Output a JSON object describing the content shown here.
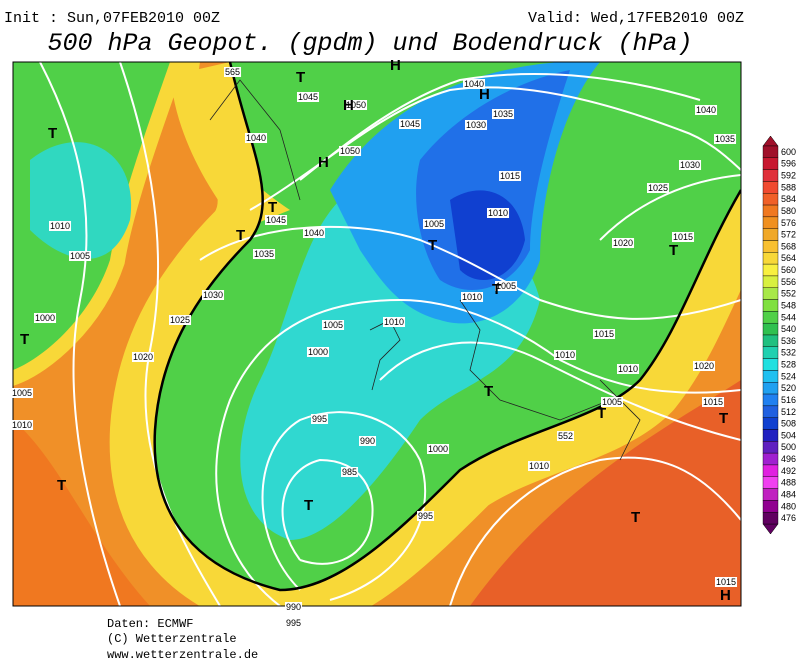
{
  "header": {
    "init": "Init : Sun,07FEB2010 00Z",
    "valid": "Valid: Wed,17FEB2010 00Z",
    "title": "500 hPa Geopot. (gpdm) und Bodendruck (hPa)"
  },
  "colorbar": {
    "levels": [
      600,
      596,
      592,
      588,
      584,
      580,
      576,
      572,
      568,
      564,
      560,
      556,
      552,
      548,
      544,
      540,
      536,
      532,
      528,
      524,
      520,
      516,
      512,
      508,
      504,
      500,
      496,
      492,
      488,
      484,
      480,
      476
    ],
    "colors": [
      "#a0102a",
      "#c81830",
      "#e0303a",
      "#f04a30",
      "#f06028",
      "#f07820",
      "#f09020",
      "#f0a828",
      "#f8c030",
      "#f8d838",
      "#f8f040",
      "#d8f040",
      "#a8e848",
      "#80e040",
      "#50d048",
      "#30c050",
      "#20c080",
      "#20d0b0",
      "#20e0e0",
      "#20c0f0",
      "#20a0f0",
      "#2080f0",
      "#2060e0",
      "#1040d0",
      "#2020c0",
      "#6020c0",
      "#a020d0",
      "#e020e0",
      "#f040f0",
      "#c020c0",
      "#900090",
      "#600060"
    ]
  },
  "map": {
    "pressure_labels": [
      "1045",
      "1050",
      "1040",
      "1050",
      "1045",
      "1040",
      "1030",
      "1035",
      "1015",
      "1010",
      "1005",
      "1005",
      "1010",
      "1010",
      "1005",
      "1000",
      "995",
      "990",
      "985",
      "1000",
      "995",
      "990",
      "995",
      "1010",
      "1010",
      "1015",
      "1010",
      "1005",
      "1020",
      "1015",
      "1020",
      "1015",
      "1025",
      "1030",
      "1035",
      "1040",
      "1045",
      "1040",
      "1035",
      "1030",
      "1025",
      "1020",
      "1010",
      "1005",
      "1000",
      "1005",
      "1010",
      "552",
      "565",
      "1015"
    ],
    "centers": [
      "T",
      "H",
      "T",
      "T",
      "T",
      "T",
      "T",
      "T",
      "T",
      "H",
      "T",
      "T",
      "T",
      "T",
      "T",
      "H",
      "H",
      "T",
      "H"
    ]
  },
  "footer": {
    "source": "Daten: ECMWF",
    "copyright": "(C) Wetterzentrale",
    "url": "www.wetterzentrale.de"
  }
}
